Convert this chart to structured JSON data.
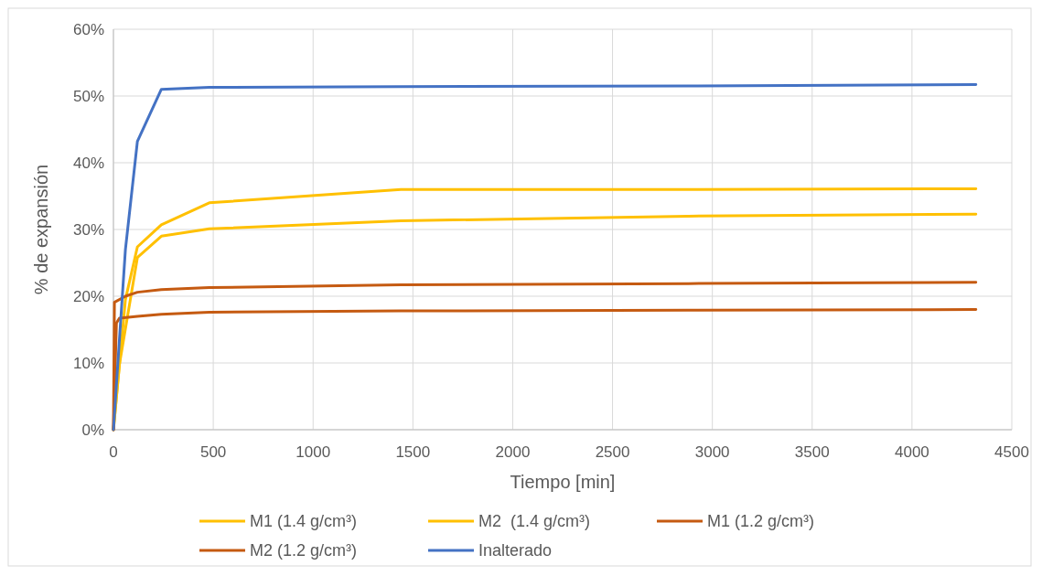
{
  "chart_data": {
    "type": "line",
    "xlabel": "Tiempo [min]",
    "ylabel": "% de expansión",
    "xlim": [
      0,
      4500
    ],
    "xticks": [
      0,
      500,
      1000,
      1500,
      2000,
      2500,
      3000,
      3500,
      4000,
      4500
    ],
    "ylim": [
      0,
      0.6
    ],
    "yticks": [
      {
        "value": 0,
        "label": "0%"
      },
      {
        "value": 0.1,
        "label": "10%"
      },
      {
        "value": 0.2,
        "label": "20%"
      },
      {
        "value": 0.3,
        "label": "30%"
      },
      {
        "value": 0.4,
        "label": "40%"
      },
      {
        "value": 0.5,
        "label": "50%"
      },
      {
        "value": 0.6,
        "label": "60%"
      }
    ],
    "grid": true,
    "legend": "bottom",
    "marker": "none",
    "line_style": "solid",
    "series": [
      {
        "name": "M1 (1.4 g/cm³)",
        "color": "#ffc000",
        "x": [
          0,
          60,
          120,
          240,
          480,
          1440,
          2880,
          4320
        ],
        "values": [
          0,
          0.195,
          0.274,
          0.307,
          0.34,
          0.36,
          0.36,
          0.361
        ]
      },
      {
        "name": "M2  (1.4 g/cm³)",
        "color": "#ffc000",
        "x": [
          0,
          30,
          120,
          240,
          480,
          1440,
          2880,
          4320
        ],
        "values": [
          0,
          0.098,
          0.258,
          0.29,
          0.301,
          0.313,
          0.32,
          0.323
        ]
      },
      {
        "name": "M1 (1.2 g/cm³)",
        "color": "#c55a11",
        "x": [
          0,
          5,
          60,
          120,
          240,
          480,
          1440,
          2880,
          4320
        ],
        "values": [
          0,
          0.191,
          0.2,
          0.206,
          0.21,
          0.213,
          0.217,
          0.219,
          0.221
        ]
      },
      {
        "name": "M2 (1.2 g/cm³)",
        "color": "#c55a11",
        "x": [
          0,
          15,
          30,
          120,
          240,
          480,
          1440,
          2880,
          4320
        ],
        "values": [
          0,
          0.16,
          0.167,
          0.17,
          0.173,
          0.176,
          0.178,
          0.179,
          0.18
        ]
      },
      {
        "name": "Inalterado",
        "color": "#4472c4",
        "x": [
          0,
          60,
          120,
          240,
          480,
          1440,
          2880,
          4320
        ],
        "values": [
          0,
          0.27,
          0.432,
          0.51,
          0.513,
          0.514,
          0.515,
          0.517
        ]
      }
    ]
  }
}
